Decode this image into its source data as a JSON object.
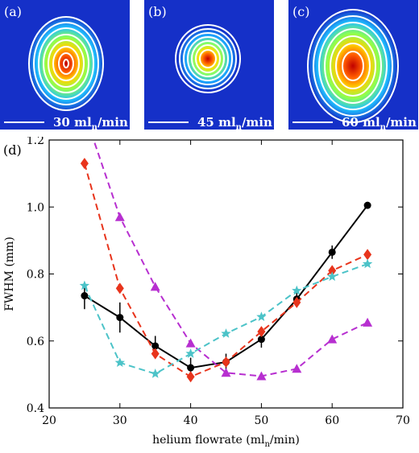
{
  "panels": [
    {
      "label": "(a)",
      "scale_text_main": "30 ml",
      "scale_sub": "n",
      "scale_tail": "/min"
    },
    {
      "label": "(b)",
      "scale_text_main": "45 ml",
      "scale_sub": "n",
      "scale_tail": "/min"
    },
    {
      "label": "(c)",
      "scale_text_main": "60 ml",
      "scale_sub": "n",
      "scale_tail": "/min"
    }
  ],
  "chart_panel_label": "(d)",
  "colors": {
    "background_blue": "#1530c8",
    "black": "#000000",
    "red": "#e8341c",
    "purple": "#b72fd0",
    "cyan": "#4cc3c8"
  },
  "chart_data": {
    "type": "line",
    "xlabel": "helium flowrate (ml",
    "xlabel_sub": "n",
    "xlabel_tail": "/min)",
    "ylabel": "FWHM (mm)",
    "xlim": [
      20,
      70
    ],
    "ylim": [
      0.4,
      1.2
    ],
    "xticks": [
      20,
      30,
      40,
      50,
      60,
      70
    ],
    "yticks": [
      0.4,
      0.6,
      0.8,
      1.0,
      1.2
    ],
    "ytick_labels": [
      "0.4",
      "0.6",
      "0.8",
      "1.0",
      "1.2"
    ],
    "series": [
      {
        "key": "black",
        "marker": "circle",
        "dashed": false,
        "x": [
          25,
          30,
          35,
          40,
          45,
          50,
          55,
          60,
          65
        ],
        "y": [
          0.735,
          0.67,
          0.585,
          0.52,
          0.537,
          0.605,
          0.725,
          0.865,
          1.005
        ],
        "err": [
          0.04,
          0.045,
          0.03,
          0.03,
          0.025,
          0.025,
          0.02,
          0.02,
          0.01
        ]
      },
      {
        "key": "red",
        "marker": "diamond",
        "dashed": true,
        "x": [
          25,
          30,
          35,
          40,
          45,
          50,
          55,
          60,
          65
        ],
        "y": [
          1.13,
          0.757,
          0.562,
          0.493,
          0.537,
          0.628,
          0.715,
          0.81,
          0.858
        ]
      },
      {
        "key": "purple",
        "marker": "triangle",
        "dashed": true,
        "x": [
          25,
          30,
          35,
          40,
          45,
          50,
          55,
          60,
          65
        ],
        "y": [
          1.28,
          0.97,
          0.762,
          0.593,
          0.505,
          0.495,
          0.517,
          0.605,
          0.655
        ]
      },
      {
        "key": "cyan",
        "marker": "star",
        "dashed": true,
        "x": [
          25,
          30,
          35,
          40,
          45,
          50,
          55,
          60,
          65
        ],
        "y": [
          0.765,
          0.535,
          0.502,
          0.562,
          0.622,
          0.672,
          0.75,
          0.792,
          0.83
        ]
      }
    ]
  }
}
